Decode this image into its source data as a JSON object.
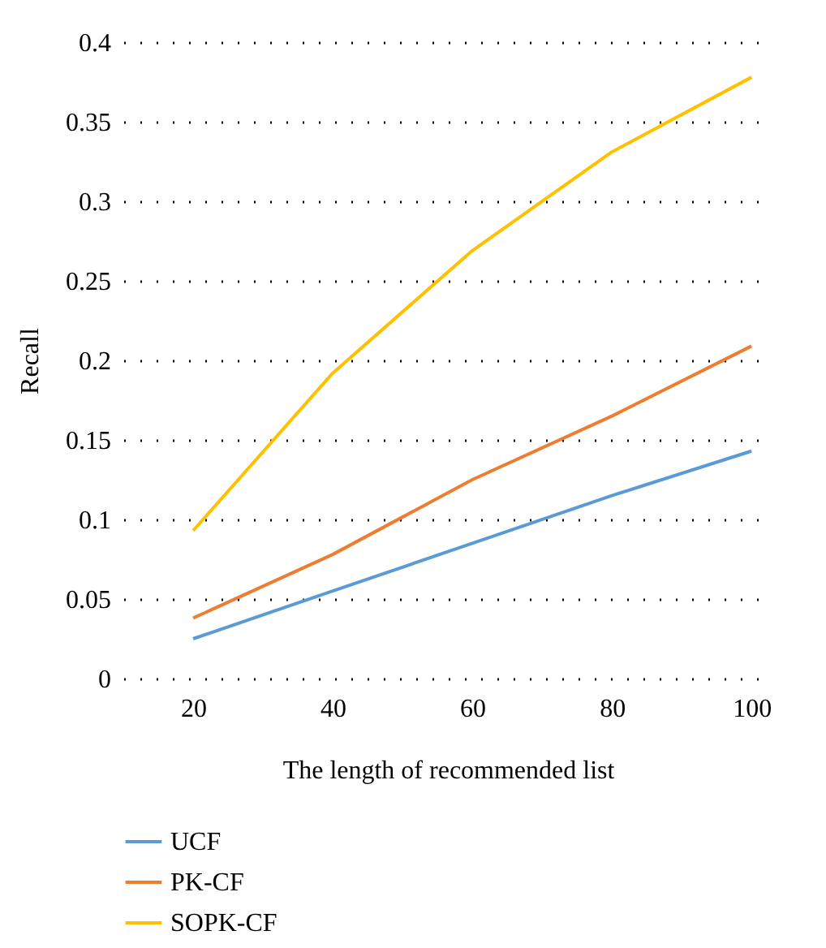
{
  "chart_data": {
    "type": "line",
    "xlabel": "The length of recommended list",
    "ylabel": "Recall",
    "x": [
      20,
      40,
      60,
      80,
      100
    ],
    "series": [
      {
        "name": "UCF",
        "color": "#5b9bd5",
        "values": [
          0.025,
          0.055,
          0.085,
          0.115,
          0.143
        ]
      },
      {
        "name": "PK-CF",
        "color": "#ed7d31",
        "values": [
          0.038,
          0.078,
          0.125,
          0.165,
          0.209
        ]
      },
      {
        "name": "SOPK-CF",
        "color": "#ffc000",
        "values": [
          0.093,
          0.192,
          0.269,
          0.331,
          0.378
        ]
      }
    ],
    "xlim": [
      10,
      103
    ],
    "xticks": [
      20,
      40,
      60,
      80,
      100
    ],
    "ylim": [
      0,
      0.4
    ],
    "yticks": [
      0,
      0.05,
      0.1,
      0.15,
      0.2,
      0.25,
      0.3,
      0.35,
      0.4
    ],
    "grid": "y",
    "legend": "bottom",
    "marker": "none",
    "line_style": "solid"
  }
}
